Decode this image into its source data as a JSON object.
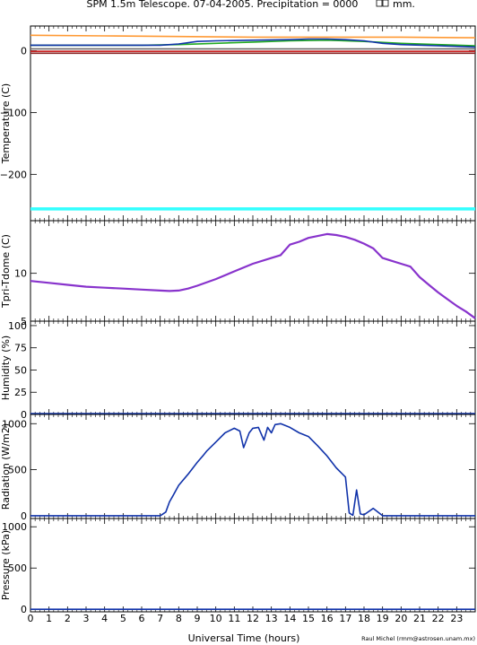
{
  "header": {
    "title": "SPM 1.5m Telescope. 07-04-2005. Precipitation = 0000",
    "title_unit": "mm."
  },
  "footer": {
    "xlabel": "Universal Time (hours)",
    "credit": "Raul Michel (rmm@astrosen.unam.mx)"
  },
  "chart_data": [
    {
      "type": "line",
      "ylabel": "Temperature (C)",
      "xlim": [
        0,
        24
      ],
      "ylim": [
        -275,
        40
      ],
      "x_ticks": [
        0,
        1,
        2,
        3,
        4,
        5,
        6,
        7,
        8,
        9,
        10,
        11,
        12,
        13,
        14,
        15,
        16,
        17,
        18,
        19,
        20,
        21,
        22,
        23
      ],
      "y_ticks": [
        0,
        -100,
        -200
      ],
      "series": [
        {
          "color": "#ff9933",
          "x": [
            0,
            4,
            8,
            12,
            16,
            20,
            24
          ],
          "y": [
            25,
            24,
            23,
            22,
            22,
            22,
            21
          ]
        },
        {
          "color": "#22aa22",
          "x": [
            0,
            6,
            8,
            10,
            12,
            14,
            16,
            18,
            20,
            22,
            24
          ],
          "y": [
            9,
            9,
            10,
            12,
            14,
            16,
            17,
            15,
            12,
            10,
            8
          ]
        },
        {
          "color": "#1133aa",
          "x": [
            0,
            7,
            8,
            9,
            10,
            12,
            14,
            15,
            16,
            17,
            18,
            19,
            20,
            22,
            24
          ],
          "y": [
            9,
            9,
            11,
            15,
            16,
            17,
            18,
            19,
            19,
            18,
            16,
            12,
            10,
            8,
            6
          ]
        },
        {
          "color": "#666666",
          "x": [
            0,
            24
          ],
          "y": [
            3,
            3
          ]
        },
        {
          "color": "#cc2222",
          "x": [
            0,
            24
          ],
          "y": [
            -1,
            -1
          ]
        },
        {
          "color": "#882222",
          "x": [
            0,
            24
          ],
          "y": [
            -4,
            -4
          ]
        },
        {
          "color": "#33ffff",
          "x": [
            0,
            24
          ],
          "y": [
            -256,
            -256
          ]
        }
      ]
    },
    {
      "type": "scatter",
      "ylabel": "Tpri-Tdome (C)",
      "xlim": [
        0,
        24
      ],
      "ylim": [
        5,
        15.5
      ],
      "y_ticks": [
        10,
        5
      ],
      "series": [
        {
          "color": "#8833cc",
          "x": [
            0,
            1,
            2,
            3,
            4,
            5,
            6,
            7,
            7.5,
            8,
            8.5,
            9,
            10,
            11,
            12,
            13,
            13.5,
            14,
            14.5,
            15,
            15.5,
            16,
            16.5,
            17,
            17.5,
            18,
            18.5,
            19,
            19.5,
            20,
            20.5,
            21,
            21.5,
            22,
            22.5,
            23,
            23.5,
            24
          ],
          "y": [
            9.2,
            9.0,
            8.8,
            8.6,
            8.5,
            8.4,
            8.3,
            8.2,
            8.15,
            8.2,
            8.4,
            8.7,
            9.4,
            10.2,
            11.0,
            11.6,
            11.9,
            13.0,
            13.3,
            13.7,
            13.9,
            14.1,
            14.0,
            13.8,
            13.5,
            13.1,
            12.6,
            11.6,
            11.3,
            11.0,
            10.7,
            9.6,
            8.8,
            8.0,
            7.3,
            6.6,
            6.0,
            5.3
          ]
        }
      ]
    },
    {
      "type": "line",
      "ylabel": "Humidity (%)",
      "xlim": [
        0,
        24
      ],
      "ylim": [
        0,
        105
      ],
      "y_ticks": [
        100,
        75,
        50,
        25,
        0
      ],
      "series": [
        {
          "color": "#1133aa",
          "x": [
            0,
            24
          ],
          "y": [
            1,
            1
          ]
        }
      ]
    },
    {
      "type": "line",
      "ylabel": "Radiation (W/m2)",
      "xlim": [
        0,
        24
      ],
      "ylim": [
        -30,
        1100
      ],
      "y_ticks": [
        1000,
        500,
        0
      ],
      "series": [
        {
          "color": "#1133aa",
          "x": [
            0,
            7.0,
            7.3,
            7.5,
            7.7,
            8.0,
            8.5,
            9.0,
            9.3,
            9.5,
            10.0,
            10.5,
            11.0,
            11.3,
            11.5,
            11.8,
            12.0,
            12.3,
            12.6,
            12.8,
            13.0,
            13.2,
            13.5,
            14.0,
            14.5,
            15.0,
            15.5,
            16.0,
            16.5,
            17.0,
            17.2,
            17.4,
            17.6,
            17.8,
            18.0,
            18.5,
            19.0,
            24
          ],
          "y": [
            0,
            0,
            40,
            150,
            220,
            330,
            450,
            580,
            650,
            700,
            800,
            900,
            950,
            920,
            740,
            900,
            950,
            960,
            820,
            960,
            900,
            990,
            1000,
            960,
            900,
            860,
            760,
            650,
            520,
            420,
            30,
            5,
            280,
            20,
            10,
            80,
            0,
            0
          ]
        }
      ]
    },
    {
      "type": "line",
      "ylabel": "Pressure (kPa)",
      "xlim": [
        0,
        24
      ],
      "ylim": [
        -30,
        1100
      ],
      "y_ticks": [
        1000,
        500,
        0
      ],
      "series": [
        {
          "color": "#1133aa",
          "x": [
            0,
            24
          ],
          "y": [
            0,
            0
          ]
        }
      ]
    }
  ]
}
